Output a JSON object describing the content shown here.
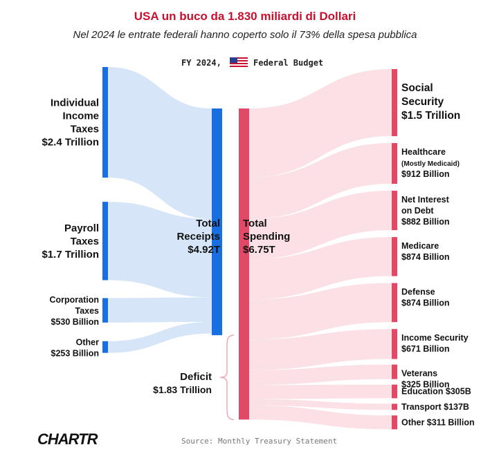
{
  "header": {
    "title": "USA un buco da 1.830 miliardi di Dollari",
    "subtitle": "Nel 2024 le entrate federali hanno coperto solo il 73% della spesa pubblica"
  },
  "chart_data": {
    "type": "sankey",
    "title": "FY 2024, Federal Budget",
    "title_prefix": "FY 2024,",
    "title_suffix": "Federal Budget",
    "units": "trillion USD",
    "sources": [
      {
        "label": [
          "Individual",
          "Income",
          "Taxes",
          "$2.4 Trillion"
        ],
        "value": 2.4
      },
      {
        "label": [
          "Payroll",
          "Taxes",
          "$1.7 Trillion"
        ],
        "value": 1.7
      },
      {
        "label": [
          "Corporation",
          "Taxes",
          "$530 Billion"
        ],
        "value": 0.53
      },
      {
        "label": [
          "Other",
          "$253 Billion"
        ],
        "value": 0.253
      }
    ],
    "receipts": {
      "label": [
        "Total",
        "Receipts",
        "$4.92T"
      ],
      "value": 4.92
    },
    "spending": {
      "label": [
        "Total",
        "Spending",
        "$6.75T"
      ],
      "value": 6.75
    },
    "deficit": {
      "label": [
        "Deficit",
        "$1.83 Trillion"
      ],
      "value": 1.83
    },
    "targets": [
      {
        "label": [
          "Social",
          "Security",
          "$1.5 Trillion"
        ],
        "value": 1.5,
        "size": "big"
      },
      {
        "label": [
          "Healthcare",
          "(Mostly Medicaid)",
          "$912 Billion"
        ],
        "value": 0.912
      },
      {
        "label": [
          "Net Interest",
          "on Debt",
          "$882 Billion"
        ],
        "value": 0.882
      },
      {
        "label": [
          "Medicare",
          "$874 Billion"
        ],
        "value": 0.874
      },
      {
        "label": [
          "Defense",
          "$874 Billion"
        ],
        "value": 0.874
      },
      {
        "label": [
          "Income Security",
          "$671 Billion"
        ],
        "value": 0.671
      },
      {
        "label": [
          "Veterans",
          "$325 Billion"
        ],
        "value": 0.325
      },
      {
        "label": [
          "Education $305B"
        ],
        "value": 0.305
      },
      {
        "label": [
          "Transport $137B"
        ],
        "value": 0.137
      },
      {
        "label": [
          "Other $311 Billion"
        ],
        "value": 0.311
      }
    ],
    "colors": {
      "receipts": "#1a6fe0",
      "receipts_flow": "#d6e6f8",
      "spending": "#e04a66",
      "spending_flow": "#fbe0e5",
      "deficit_text": "#e04a66",
      "receipts_text": "#1a6fe0"
    }
  },
  "footer": {
    "logo": "CHARTR",
    "source": "Source: Monthly Treasury Statement"
  }
}
